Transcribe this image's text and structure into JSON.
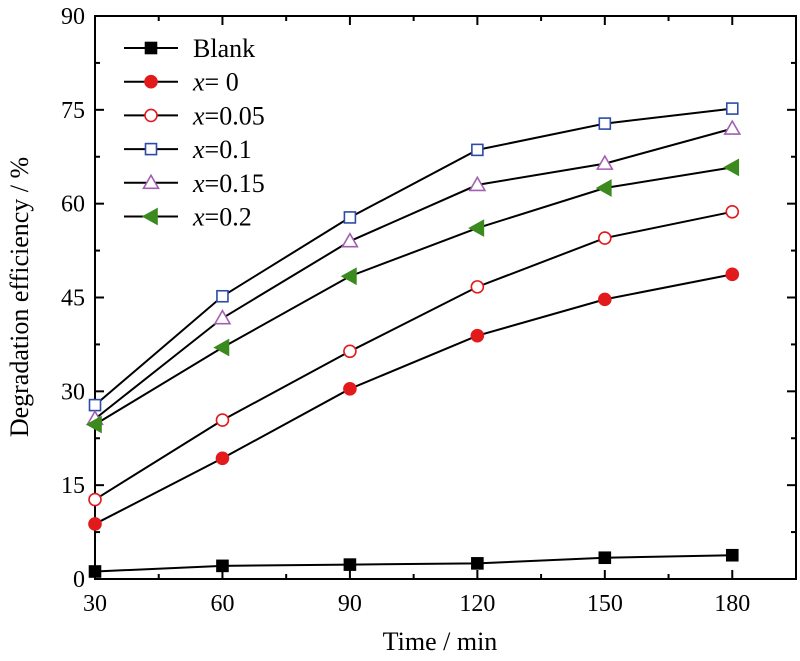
{
  "chart_data": {
    "type": "line",
    "title": "",
    "xlabel": "Time / min",
    "ylabel": "Degradation efficiency / %",
    "xlim": [
      30,
      195
    ],
    "ylim": [
      0,
      90
    ],
    "xticks": [
      30,
      60,
      90,
      120,
      150,
      180
    ],
    "yticks": [
      0,
      15,
      30,
      45,
      60,
      75,
      90
    ],
    "grid": false,
    "legend_position": "top-left",
    "x": [
      30,
      60,
      90,
      120,
      150,
      180
    ],
    "series": [
      {
        "name": "Blank",
        "legend_prefix": "",
        "legend_suffix": "Blank",
        "marker": "square-filled",
        "color": "#000000",
        "fill": "#000000",
        "values": [
          1.2,
          2.1,
          2.3,
          2.5,
          3.4,
          3.8
        ]
      },
      {
        "name": "x= 0",
        "legend_prefix": "x",
        "legend_suffix": "= 0",
        "marker": "circle-filled",
        "color": "#e31a1c",
        "fill": "#e31a1c",
        "values": [
          8.8,
          19.3,
          30.4,
          38.9,
          44.7,
          48.7
        ]
      },
      {
        "name": "x=0.05",
        "legend_prefix": "x",
        "legend_suffix": "=0.05",
        "marker": "circle-open",
        "color": "#e31a1c",
        "fill": "#ffffff",
        "values": [
          12.7,
          25.4,
          36.4,
          46.7,
          54.5,
          58.7
        ]
      },
      {
        "name": "x=0.1",
        "legend_prefix": "x",
        "legend_suffix": "=0.1",
        "marker": "square-open",
        "color": "#2b4ba5",
        "fill": "#ffffff",
        "values": [
          27.8,
          45.2,
          57.8,
          68.6,
          72.8,
          75.2
        ]
      },
      {
        "name": "x=0.15",
        "legend_prefix": "x",
        "legend_suffix": "=0.15",
        "marker": "triangle-up-open",
        "color": "#a35fb0",
        "fill": "#ffffff",
        "values": [
          25.6,
          41.7,
          54.0,
          63.0,
          66.4,
          72.0
        ]
      },
      {
        "name": "x=0.2",
        "legend_prefix": "x",
        "legend_suffix": "=0.2",
        "marker": "triangle-left-filled",
        "color": "#3a8a1e",
        "fill": "#3a8a1e",
        "values": [
          24.7,
          37.0,
          48.4,
          56.1,
          62.5,
          65.8
        ]
      }
    ]
  }
}
